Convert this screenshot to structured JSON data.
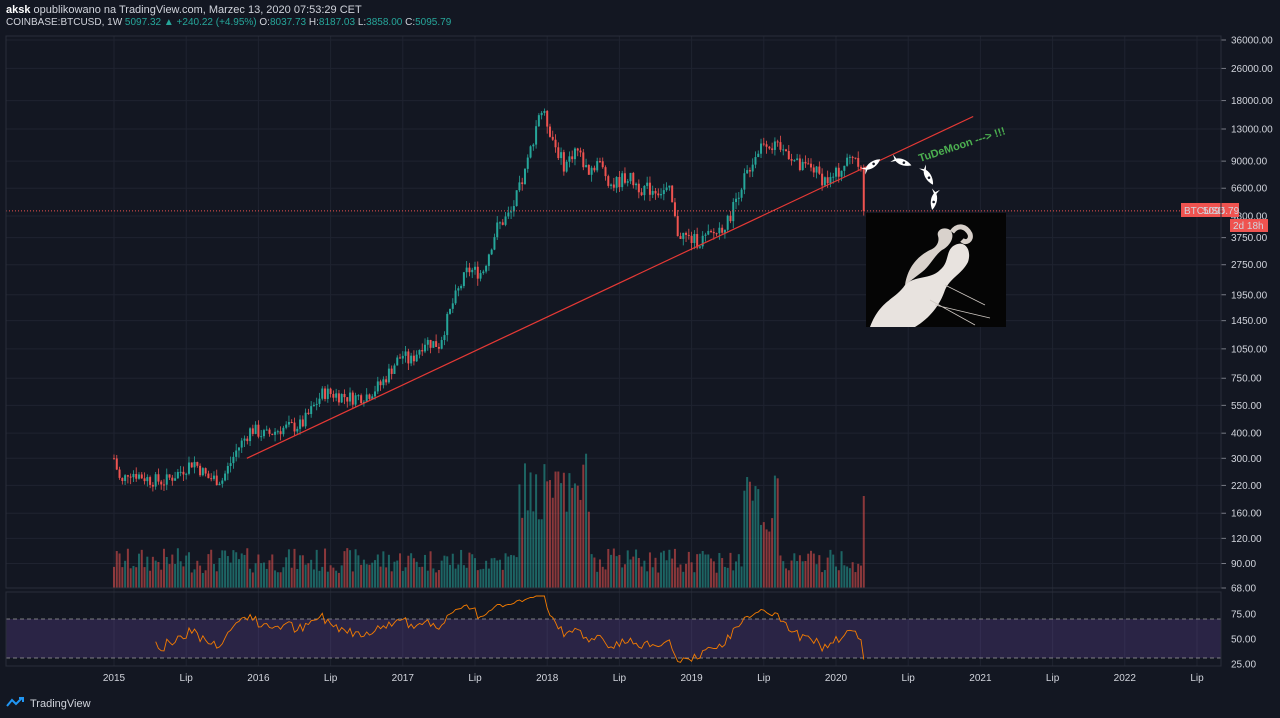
{
  "header": {
    "author": "aksk",
    "published": "opublikowano na TradingView.com, Marzec 13, 2020 07:53:29 CET",
    "symbol": "COINBASE:BTCUSD, 1W",
    "last": "5097.32",
    "change": "+240.22 (+4.95%)",
    "o_label": "O:",
    "o": "8037.73",
    "h_label": "H:",
    "h": "8187.03",
    "l_label": "L:",
    "l": "3858.00",
    "c_label": "C:",
    "c": "5095.79"
  },
  "price_label": {
    "symbol": "BTCUSD",
    "value": "5095.79",
    "countdown": "2d 18h"
  },
  "annotation": "TuDeMoon ---> !!!",
  "footer": {
    "brand": "TradingView"
  },
  "colors": {
    "up": "#26a69a",
    "down": "#ef5350",
    "trend": "#e53935",
    "rsi": "#f57c00",
    "rsi_band": "#7e57c2"
  },
  "chart_data": {
    "type": "candlestick",
    "scale": "log",
    "y_ticks": [
      "36000.00",
      "26000.00",
      "18000.00",
      "13000.00",
      "9000.00",
      "6600.00",
      "4800.00",
      "3750.00",
      "2750.00",
      "1950.00",
      "1450.00",
      "1050.00",
      "750.00",
      "550.00",
      "400.00",
      "300.00",
      "220.00",
      "160.00",
      "120.00",
      "90.00",
      "68.00"
    ],
    "x_ticks": [
      "2015",
      "Lip",
      "2016",
      "Lip",
      "2017",
      "Lip",
      "2018",
      "Lip",
      "2019",
      "Lip",
      "2020",
      "Lip",
      "2021",
      "Lip",
      "2022",
      "Lip"
    ],
    "current_price": 5095.79,
    "path": [
      [
        2015.0,
        300
      ],
      [
        2015.05,
        220
      ],
      [
        2015.1,
        260
      ],
      [
        2015.25,
        235
      ],
      [
        2015.35,
        230
      ],
      [
        2015.45,
        255
      ],
      [
        2015.55,
        290
      ],
      [
        2015.65,
        240
      ],
      [
        2015.75,
        235
      ],
      [
        2015.85,
        330
      ],
      [
        2015.95,
        420
      ],
      [
        2016.05,
        390
      ],
      [
        2016.15,
        420
      ],
      [
        2016.3,
        440
      ],
      [
        2016.45,
        640
      ],
      [
        2016.55,
        620
      ],
      [
        2016.65,
        600
      ],
      [
        2016.75,
        620
      ],
      [
        2016.85,
        700
      ],
      [
        2016.95,
        900
      ],
      [
        2017.0,
        980
      ],
      [
        2017.05,
        900
      ],
      [
        2017.15,
        1150
      ],
      [
        2017.25,
        1100
      ],
      [
        2017.35,
        1800
      ],
      [
        2017.45,
        2600
      ],
      [
        2017.55,
        2500
      ],
      [
        2017.65,
        4200
      ],
      [
        2017.75,
        5000
      ],
      [
        2017.85,
        8000
      ],
      [
        2017.95,
        16500
      ],
      [
        2018.0,
        14000
      ],
      [
        2018.05,
        11000
      ],
      [
        2018.12,
        8500
      ],
      [
        2018.2,
        10500
      ],
      [
        2018.28,
        8000
      ],
      [
        2018.35,
        9000
      ],
      [
        2018.45,
        6800
      ],
      [
        2018.55,
        7600
      ],
      [
        2018.65,
        6600
      ],
      [
        2018.75,
        6500
      ],
      [
        2018.85,
        6300
      ],
      [
        2018.9,
        4000
      ],
      [
        2018.98,
        3700
      ],
      [
        2019.05,
        3600
      ],
      [
        2019.15,
        3900
      ],
      [
        2019.25,
        4500
      ],
      [
        2019.33,
        6500
      ],
      [
        2019.42,
        9000
      ],
      [
        2019.5,
        11500
      ],
      [
        2019.58,
        10500
      ],
      [
        2019.67,
        10000
      ],
      [
        2019.75,
        8300
      ],
      [
        2019.83,
        8500
      ],
      [
        2019.9,
        7400
      ],
      [
        2019.96,
        7200
      ],
      [
        2020.05,
        8500
      ],
      [
        2020.12,
        9800
      ],
      [
        2020.17,
        8800
      ],
      [
        2020.19,
        7900
      ],
      [
        2020.2,
        5095.79
      ]
    ],
    "trendline": [
      [
        2015.92,
        300
      ],
      [
        2020.95,
        15000
      ]
    ],
    "rsi": {
      "levels": [
        70,
        30
      ],
      "ticks": [
        "75.00",
        "50.00",
        "25.00"
      ]
    }
  }
}
